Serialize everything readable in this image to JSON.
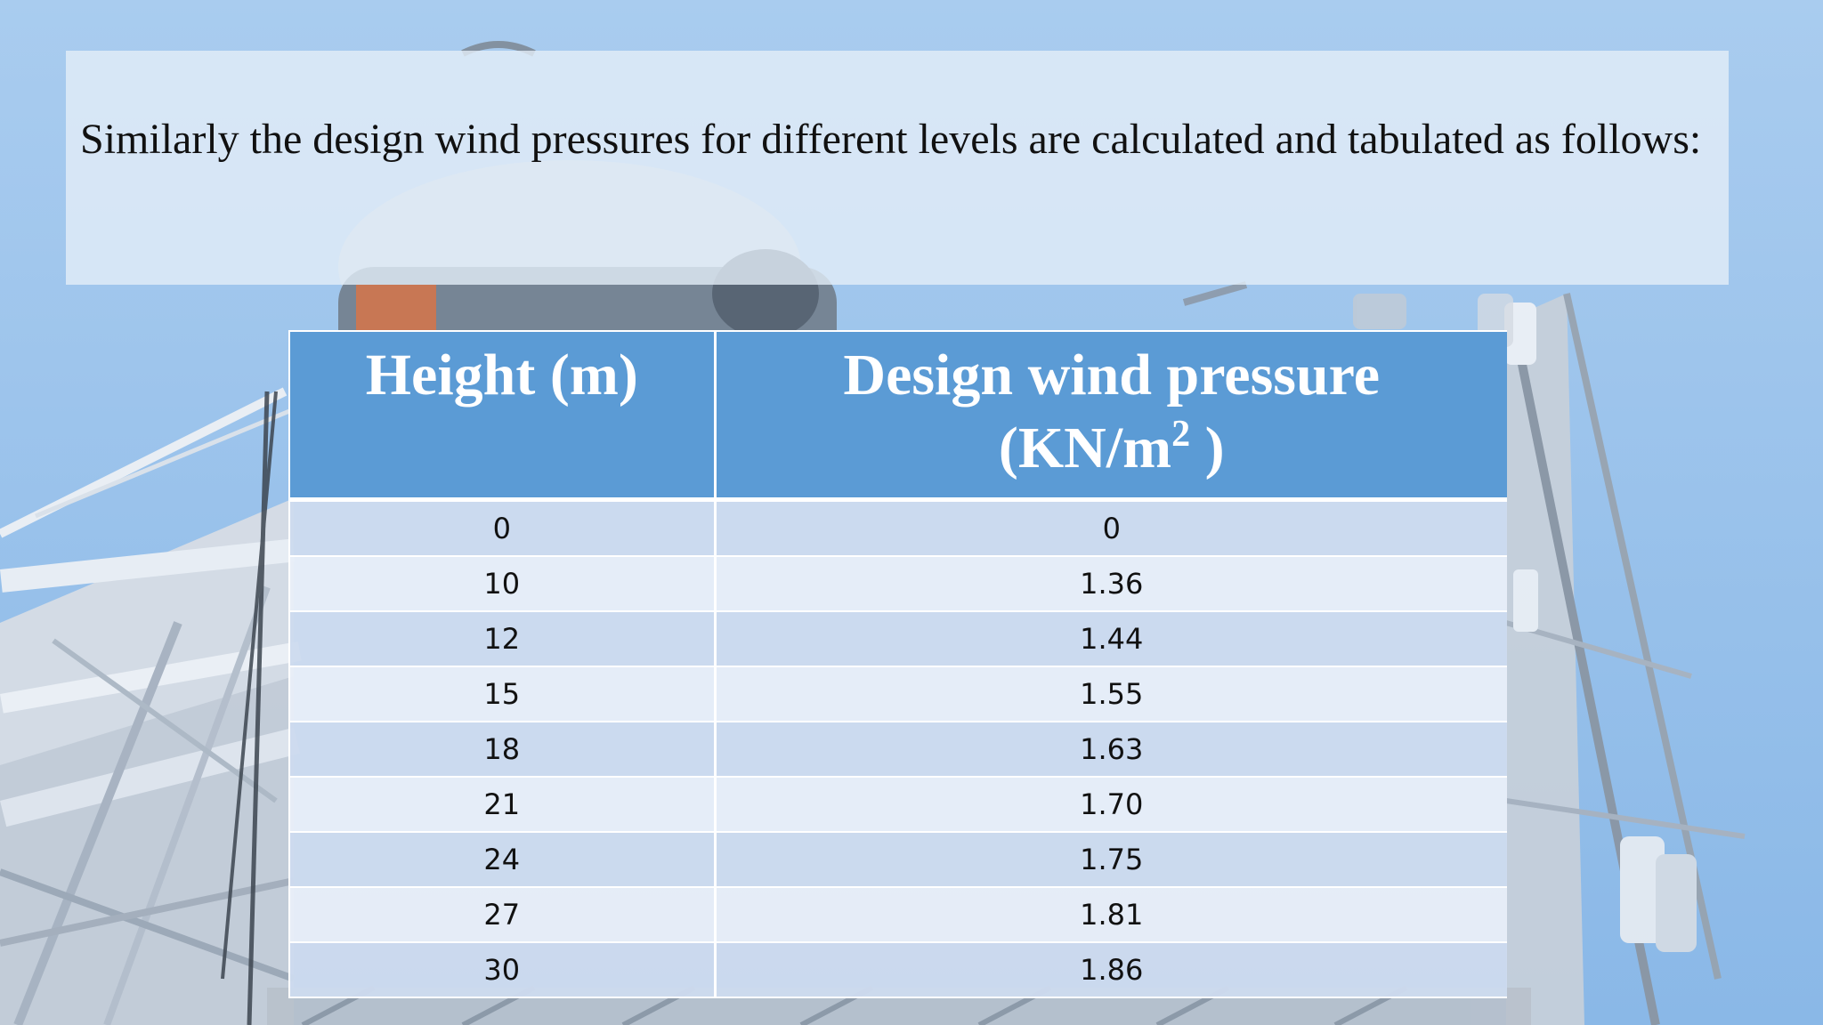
{
  "slide": {
    "intro_text": "Similarly the design wind pressures for different levels are calculated and tabulated as follows:"
  },
  "table": {
    "headers": {
      "height": "Height (m)",
      "pressure_line1": "Design wind pressure",
      "pressure_unit_open": "(KN/m",
      "pressure_unit_sup": "2",
      "pressure_unit_close": " )"
    },
    "rows": [
      {
        "height": "0",
        "pressure": "0"
      },
      {
        "height": "10",
        "pressure": "1.36"
      },
      {
        "height": "12",
        "pressure": "1.44"
      },
      {
        "height": "15",
        "pressure": "1.55"
      },
      {
        "height": "18",
        "pressure": "1.63"
      },
      {
        "height": "21",
        "pressure": "1.70"
      },
      {
        "height": "24",
        "pressure": "1.75"
      },
      {
        "height": "27",
        "pressure": "1.81"
      },
      {
        "height": "30",
        "pressure": "1.86"
      }
    ]
  },
  "colors": {
    "header_bg": "#5b9bd5",
    "row_odd": "#cddbee",
    "row_even": "#e8eef8",
    "sky": "#9dc4ec"
  }
}
